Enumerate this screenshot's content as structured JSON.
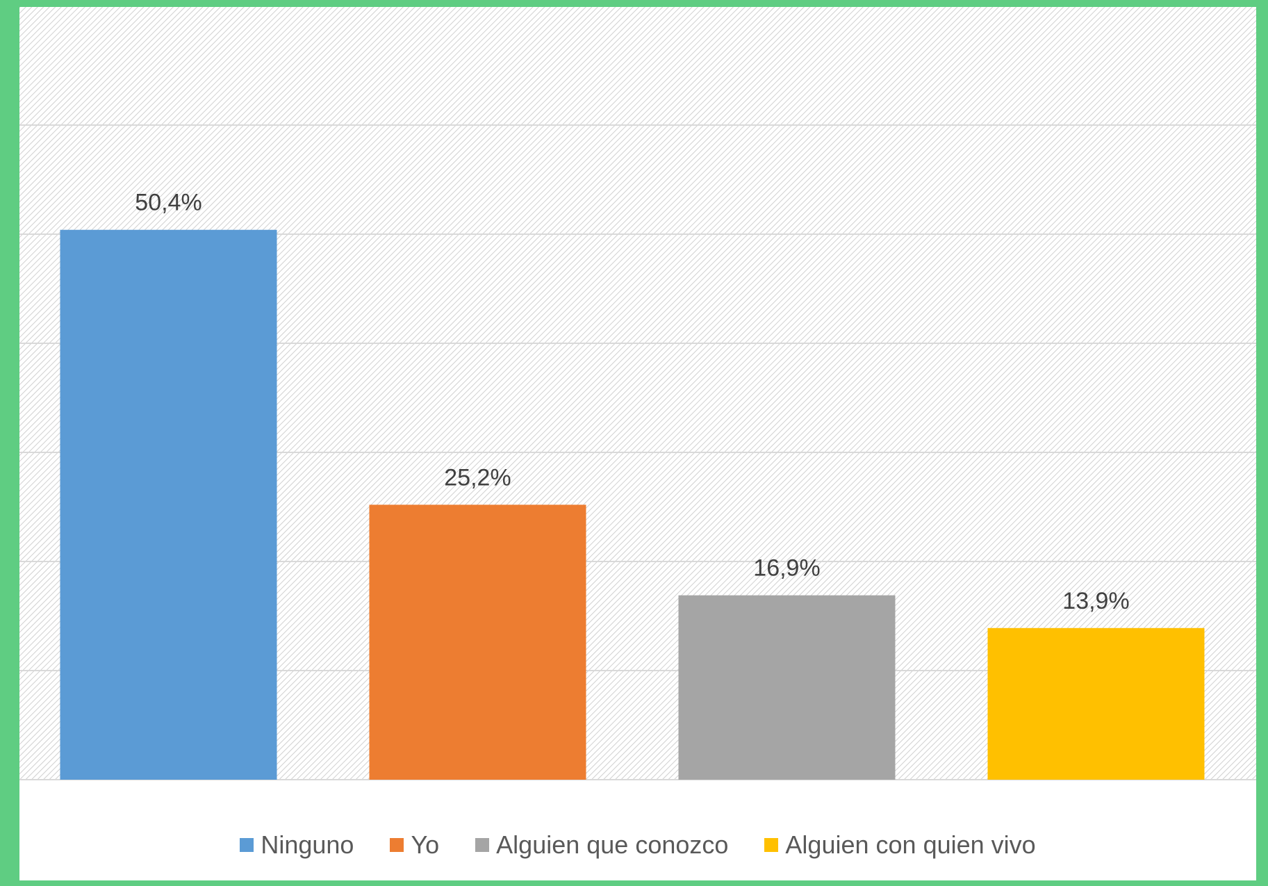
{
  "chart_data": {
    "type": "bar",
    "categories": [
      "Ninguno",
      "Yo",
      "Alguien que conozco",
      "Alguien con quien vivo"
    ],
    "values": [
      50.4,
      25.2,
      16.9,
      13.9
    ],
    "value_labels": [
      "50,4%",
      "25,2%",
      "16,9%",
      "13,9%"
    ],
    "colors": [
      "#5b9bd5",
      "#ed7d31",
      "#a5a5a5",
      "#ffc000"
    ],
    "ylim": [
      0,
      60
    ],
    "grid": true,
    "legend_position": "bottom",
    "legend": [
      {
        "label": "Ninguno",
        "color": "#5b9bd5"
      },
      {
        "label": "Yo",
        "color": "#ed7d31"
      },
      {
        "label": "Alguien que conozco",
        "color": "#a5a5a5"
      },
      {
        "label": "Alguien con quien vivo",
        "color": "#ffc000"
      }
    ]
  }
}
